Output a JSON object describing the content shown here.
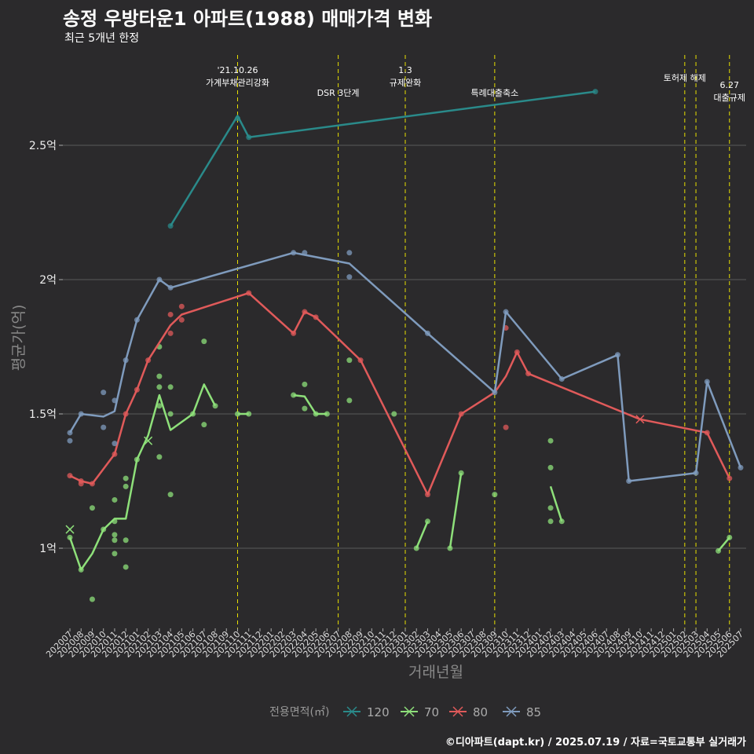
{
  "title": "송정 우방타운1 아파트(1988) 매매가격 변화",
  "subtitle": "최근 5개년 한정",
  "caption": "©디아파트(dapt.kr) / 2025.07.19 / 자료=국토교통부 실거래가",
  "chart_data": {
    "type": "line",
    "xlabel": "거래년월",
    "ylabel": "평균가(억)",
    "ylim": [
      0.7,
      2.9
    ],
    "y_ticks": [
      1.0,
      1.5,
      2.0,
      2.5
    ],
    "y_tick_labels": [
      "1억",
      "1.5억",
      "2억",
      "2.5억"
    ],
    "grid": true,
    "legend": {
      "title": "전용면적(㎡)",
      "position": "bottom"
    },
    "x": [
      "202007",
      "202008",
      "202009",
      "202010",
      "202011",
      "202012",
      "202101",
      "202102",
      "202103",
      "202104",
      "202105",
      "202106",
      "202107",
      "202108",
      "202109",
      "202110",
      "202111",
      "202112",
      "202201",
      "202202",
      "202203",
      "202204",
      "202205",
      "202206",
      "202207",
      "202208",
      "202209",
      "202210",
      "202211",
      "202212",
      "202301",
      "202302",
      "202303",
      "202304",
      "202305",
      "202306",
      "202307",
      "202308",
      "202309",
      "202310",
      "202311",
      "202312",
      "202401",
      "202402",
      "202403",
      "202404",
      "202405",
      "202406",
      "202407",
      "202408",
      "202409",
      "202410",
      "202411",
      "202412",
      "202501",
      "202502",
      "202503",
      "202504",
      "202505",
      "202506",
      "202507"
    ],
    "events": [
      {
        "month": "202110",
        "label": "'21.10.26\n가계부채관리강화"
      },
      {
        "month": "202207",
        "label": "DSR 3단계"
      },
      {
        "month": "202301",
        "label": "1.3\n규제완화"
      },
      {
        "month": "202309",
        "label": "특례대출축소"
      },
      {
        "month": "202502",
        "label": "토허제 해제"
      },
      {
        "month": "202503",
        "label": ""
      },
      {
        "month": "202506",
        "label": "6.27\n대출규제"
      }
    ],
    "series": [
      {
        "name": "120",
        "color": "#2a8a8a",
        "line": [
          [
            "202104",
            2.2
          ],
          [
            "202110",
            2.61
          ],
          [
            "202111",
            2.53
          ],
          [
            "202406",
            2.7
          ]
        ],
        "points": [
          [
            "202104",
            2.2
          ],
          [
            "202110",
            2.6
          ],
          [
            "202111",
            2.53
          ],
          [
            "202406",
            2.7
          ]
        ],
        "crosses": []
      },
      {
        "name": "70",
        "color": "#8ee07a",
        "line": [
          [
            "202007",
            1.04
          ],
          [
            "202008",
            0.92
          ],
          [
            "202009",
            0.98
          ],
          [
            "202010",
            1.07
          ],
          [
            "202011",
            1.11
          ],
          [
            "202012",
            1.11
          ],
          [
            "202101",
            1.33
          ],
          [
            "202102",
            1.42
          ],
          [
            "202103",
            1.57
          ],
          [
            "202104",
            1.44
          ],
          [
            "202106",
            1.5
          ],
          [
            "202107",
            1.61
          ],
          [
            "202108",
            1.53
          ]
        ],
        "line2": [
          [
            "202110",
            1.5
          ],
          [
            "202111",
            1.5
          ]
        ],
        "line3": [
          [
            "202203",
            1.57
          ],
          [
            "202204",
            1.565
          ],
          [
            "202205",
            1.5
          ],
          [
            "202206",
            1.5
          ]
        ],
        "line4": [
          [
            "202302",
            1.0
          ],
          [
            "202303",
            1.1
          ]
        ],
        "line5": [
          [
            "202305",
            1.0
          ],
          [
            "202306",
            1.28
          ]
        ],
        "line6": [
          [
            "202402",
            1.23
          ],
          [
            "202403",
            1.1
          ]
        ],
        "line7": [
          [
            "202505",
            0.99
          ],
          [
            "202506",
            1.04
          ]
        ],
        "points": [
          [
            "202007",
            1.04
          ],
          [
            "202008",
            0.92
          ],
          [
            "202009",
            0.81
          ],
          [
            "202009",
            1.15
          ],
          [
            "202010",
            1.07
          ],
          [
            "202011",
            0.98
          ],
          [
            "202011",
            1.03
          ],
          [
            "202011",
            1.05
          ],
          [
            "202011",
            1.1
          ],
          [
            "202011",
            1.18
          ],
          [
            "202012",
            0.93
          ],
          [
            "202012",
            1.03
          ],
          [
            "202012",
            1.23
          ],
          [
            "202012",
            1.26
          ],
          [
            "202101",
            1.33
          ],
          [
            "202103",
            1.34
          ],
          [
            "202103",
            1.53
          ],
          [
            "202103",
            1.6
          ],
          [
            "202103",
            1.64
          ],
          [
            "202103",
            1.75
          ],
          [
            "202104",
            1.2
          ],
          [
            "202104",
            1.5
          ],
          [
            "202104",
            1.6
          ],
          [
            "202106",
            1.5
          ],
          [
            "202107",
            1.46
          ],
          [
            "202107",
            1.77
          ],
          [
            "202108",
            1.53
          ],
          [
            "202110",
            1.5
          ],
          [
            "202111",
            1.5
          ],
          [
            "202203",
            1.57
          ],
          [
            "202204",
            1.52
          ],
          [
            "202204",
            1.61
          ],
          [
            "202205",
            1.5
          ],
          [
            "202206",
            1.5
          ],
          [
            "202208",
            1.55
          ],
          [
            "202208",
            1.7
          ],
          [
            "202212",
            1.5
          ],
          [
            "202302",
            1.0
          ],
          [
            "202303",
            1.1
          ],
          [
            "202305",
            1.0
          ],
          [
            "202306",
            1.28
          ],
          [
            "202309",
            1.2
          ],
          [
            "202402",
            1.1
          ],
          [
            "202402",
            1.15
          ],
          [
            "202402",
            1.3
          ],
          [
            "202402",
            1.4
          ],
          [
            "202403",
            1.1
          ],
          [
            "202505",
            0.99
          ],
          [
            "202506",
            1.04
          ]
        ],
        "crosses": [
          [
            "202007",
            1.07
          ],
          [
            "202102",
            1.4
          ]
        ]
      },
      {
        "name": "80",
        "color": "#e05a5a",
        "line": [
          [
            "202007",
            1.27
          ],
          [
            "202008",
            1.25
          ],
          [
            "202009",
            1.24
          ],
          [
            "202011",
            1.35
          ],
          [
            "202012",
            1.5
          ],
          [
            "202101",
            1.59
          ],
          [
            "202102",
            1.7
          ],
          [
            "202104",
            1.83
          ],
          [
            "202105",
            1.87
          ],
          [
            "202111",
            1.95
          ],
          [
            "202203",
            1.8
          ],
          [
            "202204",
            1.88
          ],
          [
            "202205",
            1.86
          ],
          [
            "202207",
            1.78
          ],
          [
            "202209",
            1.7
          ],
          [
            "202303",
            1.2
          ],
          [
            "202306",
            1.5
          ],
          [
            "202309",
            1.58
          ],
          [
            "202310",
            1.64
          ],
          [
            "202311",
            1.73
          ],
          [
            "202312",
            1.65
          ],
          [
            "202410",
            1.48
          ],
          [
            "202504",
            1.43
          ],
          [
            "202506",
            1.26
          ]
        ],
        "points": [
          [
            "202007",
            1.27
          ],
          [
            "202008",
            1.24
          ],
          [
            "202008",
            1.25
          ],
          [
            "202009",
            1.24
          ],
          [
            "202011",
            1.35
          ],
          [
            "202012",
            1.5
          ],
          [
            "202101",
            1.59
          ],
          [
            "202102",
            1.7
          ],
          [
            "202104",
            1.8
          ],
          [
            "202104",
            1.87
          ],
          [
            "202105",
            1.85
          ],
          [
            "202105",
            1.9
          ],
          [
            "202111",
            1.95
          ],
          [
            "202203",
            1.8
          ],
          [
            "202204",
            1.88
          ],
          [
            "202205",
            1.86
          ],
          [
            "202209",
            1.7
          ],
          [
            "202303",
            1.2
          ],
          [
            "202306",
            1.5
          ],
          [
            "202310",
            1.45
          ],
          [
            "202310",
            1.82
          ],
          [
            "202311",
            1.73
          ],
          [
            "202312",
            1.65
          ],
          [
            "202504",
            1.43
          ],
          [
            "202506",
            1.26
          ]
        ],
        "crosses": [
          [
            "202410",
            1.48
          ]
        ]
      },
      {
        "name": "85",
        "color": "#7f9bbd",
        "line": [
          [
            "202007",
            1.43
          ],
          [
            "202008",
            1.5
          ],
          [
            "202010",
            1.49
          ],
          [
            "202011",
            1.51
          ],
          [
            "202012",
            1.7
          ],
          [
            "202101",
            1.85
          ],
          [
            "202103",
            2.0
          ],
          [
            "202104",
            1.97
          ],
          [
            "202203",
            2.1
          ],
          [
            "202208",
            2.06
          ],
          [
            "202303",
            1.8
          ],
          [
            "202309",
            1.58
          ],
          [
            "202310",
            1.88
          ],
          [
            "202403",
            1.63
          ],
          [
            "202408",
            1.72
          ],
          [
            "202409",
            1.25
          ],
          [
            "202503",
            1.28
          ],
          [
            "202504",
            1.62
          ],
          [
            "202507",
            1.3
          ]
        ],
        "points": [
          [
            "202007",
            1.4
          ],
          [
            "202007",
            1.43
          ],
          [
            "202008",
            1.5
          ],
          [
            "202010",
            1.45
          ],
          [
            "202010",
            1.58
          ],
          [
            "202011",
            1.39
          ],
          [
            "202011",
            1.55
          ],
          [
            "202012",
            1.7
          ],
          [
            "202101",
            1.85
          ],
          [
            "202103",
            2.0
          ],
          [
            "202104",
            1.97
          ],
          [
            "202203",
            2.1
          ],
          [
            "202204",
            2.1
          ],
          [
            "202208",
            2.01
          ],
          [
            "202208",
            2.1
          ],
          [
            "202303",
            1.8
          ],
          [
            "202309",
            1.58
          ],
          [
            "202310",
            1.88
          ],
          [
            "202403",
            1.63
          ],
          [
            "202408",
            1.72
          ],
          [
            "202409",
            1.25
          ],
          [
            "202503",
            1.28
          ],
          [
            "202504",
            1.62
          ],
          [
            "202507",
            1.3
          ]
        ],
        "crosses": []
      }
    ]
  }
}
